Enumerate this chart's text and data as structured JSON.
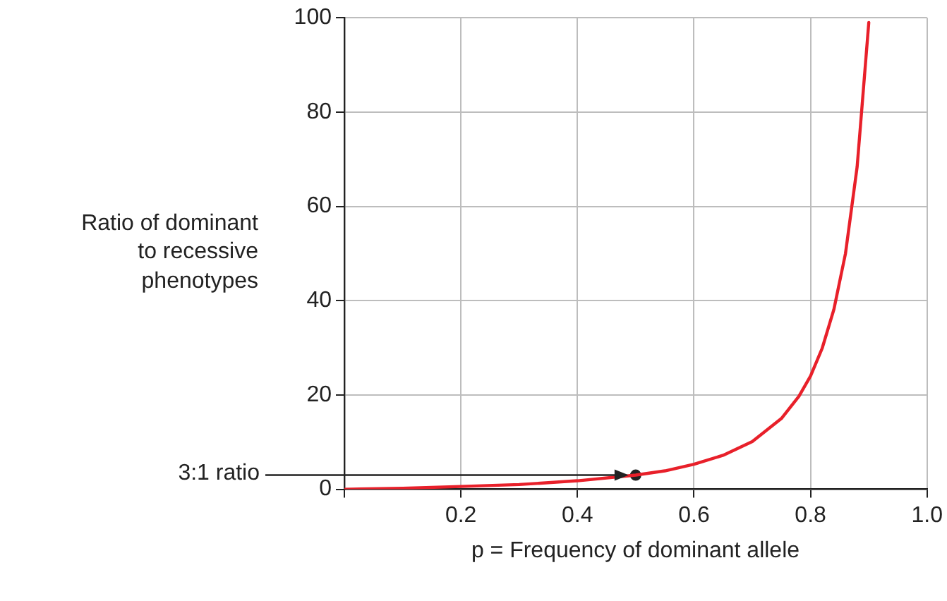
{
  "chart_data": {
    "type": "line",
    "xlabel": "p = Frequency of dominant allele",
    "ylabel": "Ratio of dominant to recessive phenotypes",
    "x": [
      0,
      0.1,
      0.2,
      0.3,
      0.4,
      0.5,
      0.55,
      0.6,
      0.65,
      0.7,
      0.75,
      0.78,
      0.8,
      0.82,
      0.84,
      0.86,
      0.88,
      0.9
    ],
    "series": [
      {
        "color": "#e8202a",
        "values": [
          0,
          0.2,
          0.6,
          1,
          1.8,
          3,
          3.9,
          5.3,
          7.2,
          10.1,
          15,
          19.7,
          24,
          29.9,
          38.1,
          50,
          68.4,
          99
        ]
      },
      {
        "type": "scatter",
        "x": [
          0.5
        ],
        "values": [
          3
        ],
        "color": "#222222",
        "marker": "circle"
      }
    ],
    "annotations": [
      "3:1 ratio"
    ],
    "xlim": [
      0,
      1
    ],
    "ylim": [
      0,
      100
    ],
    "xticks": [
      {
        "value": 0,
        "label": null
      },
      0.2,
      0.4,
      0.6,
      0.8,
      {
        "value": 1,
        "label": "1.0"
      }
    ],
    "yticks": [
      0,
      20,
      40,
      60,
      80,
      100
    ],
    "grid": true,
    "legend": false,
    "marker": "none",
    "line_style": "solid"
  }
}
